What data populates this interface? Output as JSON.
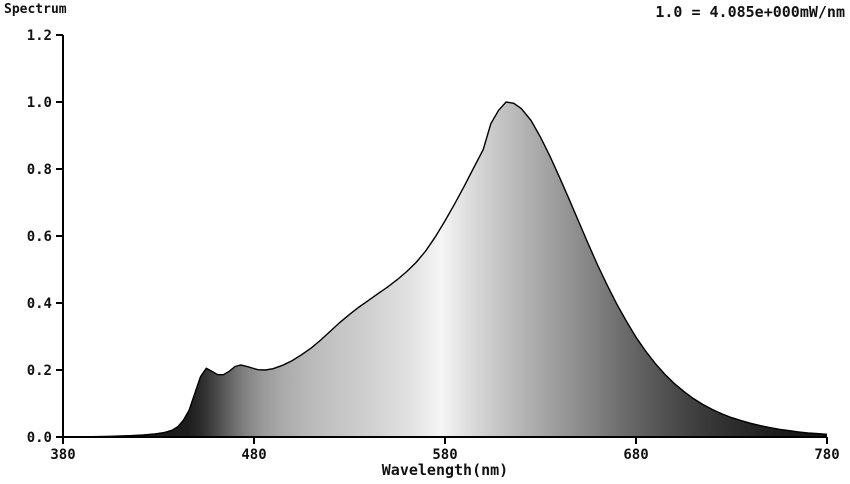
{
  "chart_data": {
    "type": "area",
    "title": "Spectrum",
    "annotation": "1.0 = 4.085e+000mW/nm",
    "xlabel": "Wavelength(nm)",
    "ylabel": "",
    "grid": false,
    "legend": false,
    "xlim": [
      380,
      780
    ],
    "ylim": [
      0,
      1.2
    ],
    "x_ticks": [
      380,
      480,
      580,
      680,
      780
    ],
    "x_tick_labels": [
      "380",
      "480",
      "580",
      "680",
      "780"
    ],
    "y_ticks": [
      0,
      0.2,
      0.4,
      0.6,
      0.8,
      1.0,
      1.2
    ],
    "y_tick_labels": [
      "0.0",
      "0.2",
      "0.4",
      "0.6",
      "0.8",
      "1.0",
      "1.2"
    ],
    "x": [
      380,
      395,
      405,
      415,
      422,
      428,
      433,
      437,
      440,
      443,
      446,
      449,
      452,
      455,
      458,
      461,
      464,
      467,
      470,
      473,
      476,
      479,
      482,
      486,
      490,
      495,
      500,
      505,
      510,
      515,
      520,
      525,
      530,
      535,
      540,
      545,
      550,
      555,
      560,
      565,
      570,
      575,
      580,
      585,
      590,
      595,
      600,
      604,
      608,
      612,
      616,
      620,
      625,
      630,
      635,
      640,
      645,
      650,
      655,
      660,
      665,
      670,
      675,
      680,
      685,
      690,
      695,
      700,
      705,
      710,
      715,
      720,
      725,
      730,
      735,
      740,
      745,
      750,
      755,
      760,
      765,
      770,
      775,
      780
    ],
    "y": [
      0.0,
      0.001,
      0.002,
      0.004,
      0.006,
      0.009,
      0.013,
      0.02,
      0.03,
      0.05,
      0.08,
      0.13,
      0.18,
      0.205,
      0.196,
      0.186,
      0.186,
      0.196,
      0.21,
      0.215,
      0.211,
      0.206,
      0.201,
      0.2,
      0.204,
      0.214,
      0.228,
      0.246,
      0.266,
      0.29,
      0.316,
      0.342,
      0.366,
      0.388,
      0.408,
      0.428,
      0.448,
      0.47,
      0.494,
      0.522,
      0.556,
      0.598,
      0.645,
      0.695,
      0.748,
      0.803,
      0.858,
      0.935,
      0.975,
      1.0,
      0.996,
      0.98,
      0.945,
      0.895,
      0.838,
      0.775,
      0.71,
      0.643,
      0.576,
      0.512,
      0.452,
      0.396,
      0.345,
      0.298,
      0.257,
      0.22,
      0.188,
      0.16,
      0.136,
      0.115,
      0.097,
      0.082,
      0.069,
      0.058,
      0.049,
      0.041,
      0.034,
      0.028,
      0.023,
      0.019,
      0.015,
      0.012,
      0.01,
      0.008
    ],
    "fill_gradient": [
      [
        380,
        "#161616"
      ],
      [
        445,
        "#1c1c1c"
      ],
      [
        452,
        "#2b2b2b"
      ],
      [
        458,
        "#3f3f3f"
      ],
      [
        464,
        "#585858"
      ],
      [
        470,
        "#6f6f6f"
      ],
      [
        477,
        "#868686"
      ],
      [
        485,
        "#9a9a9a"
      ],
      [
        495,
        "#aaaaaa"
      ],
      [
        508,
        "#b8b8b8"
      ],
      [
        520,
        "#c2c2c2"
      ],
      [
        535,
        "#cccccc"
      ],
      [
        550,
        "#d8d8d8"
      ],
      [
        562,
        "#e2e2e2"
      ],
      [
        572,
        "#eeeeee"
      ],
      [
        578,
        "#f5f5f5"
      ],
      [
        584,
        "#ebebeb"
      ],
      [
        592,
        "#dedede"
      ],
      [
        602,
        "#cecece"
      ],
      [
        612,
        "#c0c0c0"
      ],
      [
        622,
        "#b2b2b2"
      ],
      [
        634,
        "#a2a2a2"
      ],
      [
        646,
        "#929292"
      ],
      [
        658,
        "#828282"
      ],
      [
        670,
        "#717171"
      ],
      [
        682,
        "#616161"
      ],
      [
        695,
        "#515151"
      ],
      [
        708,
        "#424242"
      ],
      [
        722,
        "#343434"
      ],
      [
        738,
        "#282828"
      ],
      [
        755,
        "#1d1d1d"
      ],
      [
        780,
        "#101010"
      ]
    ],
    "axis_color": "#000000",
    "curve_color": "#000000"
  }
}
